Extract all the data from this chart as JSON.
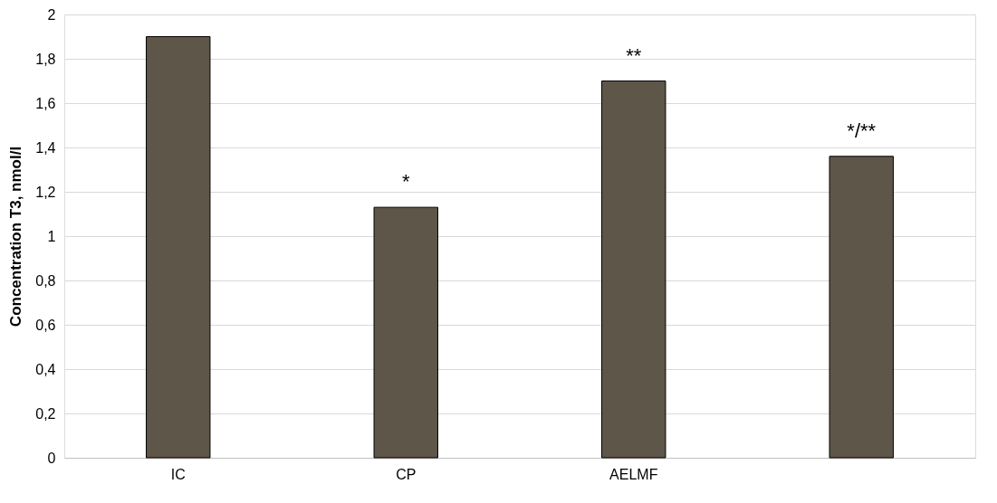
{
  "chart_data": {
    "type": "bar",
    "ylabel": "Concentration T3, nmol/l",
    "categories": [
      "IC",
      "CP",
      "AELMF",
      null
    ],
    "values": [
      1.9,
      1.13,
      1.7,
      1.36
    ],
    "color": "#5e5648",
    "ylim": [
      0,
      2
    ],
    "yticks": [
      0,
      {
        "value": 0.2,
        "label": "0,2"
      },
      {
        "value": 0.4,
        "label": "0,4"
      },
      {
        "value": 0.6,
        "label": "0,6"
      },
      {
        "value": 0.8,
        "label": "0,8"
      },
      1,
      {
        "value": 1.2,
        "label": "1,2"
      },
      {
        "value": 1.4,
        "label": "1,4"
      },
      {
        "value": 1.6,
        "label": "1,6"
      },
      {
        "value": 1.8,
        "label": "1,8"
      },
      2
    ],
    "grid": "y",
    "annotations": [
      {
        "text": "*",
        "x": "CP",
        "y": 1.13
      },
      {
        "text": "**",
        "x": "AELMF",
        "y": 1.7
      },
      {
        "text": "*/**",
        "y": 1.36
      }
    ]
  }
}
